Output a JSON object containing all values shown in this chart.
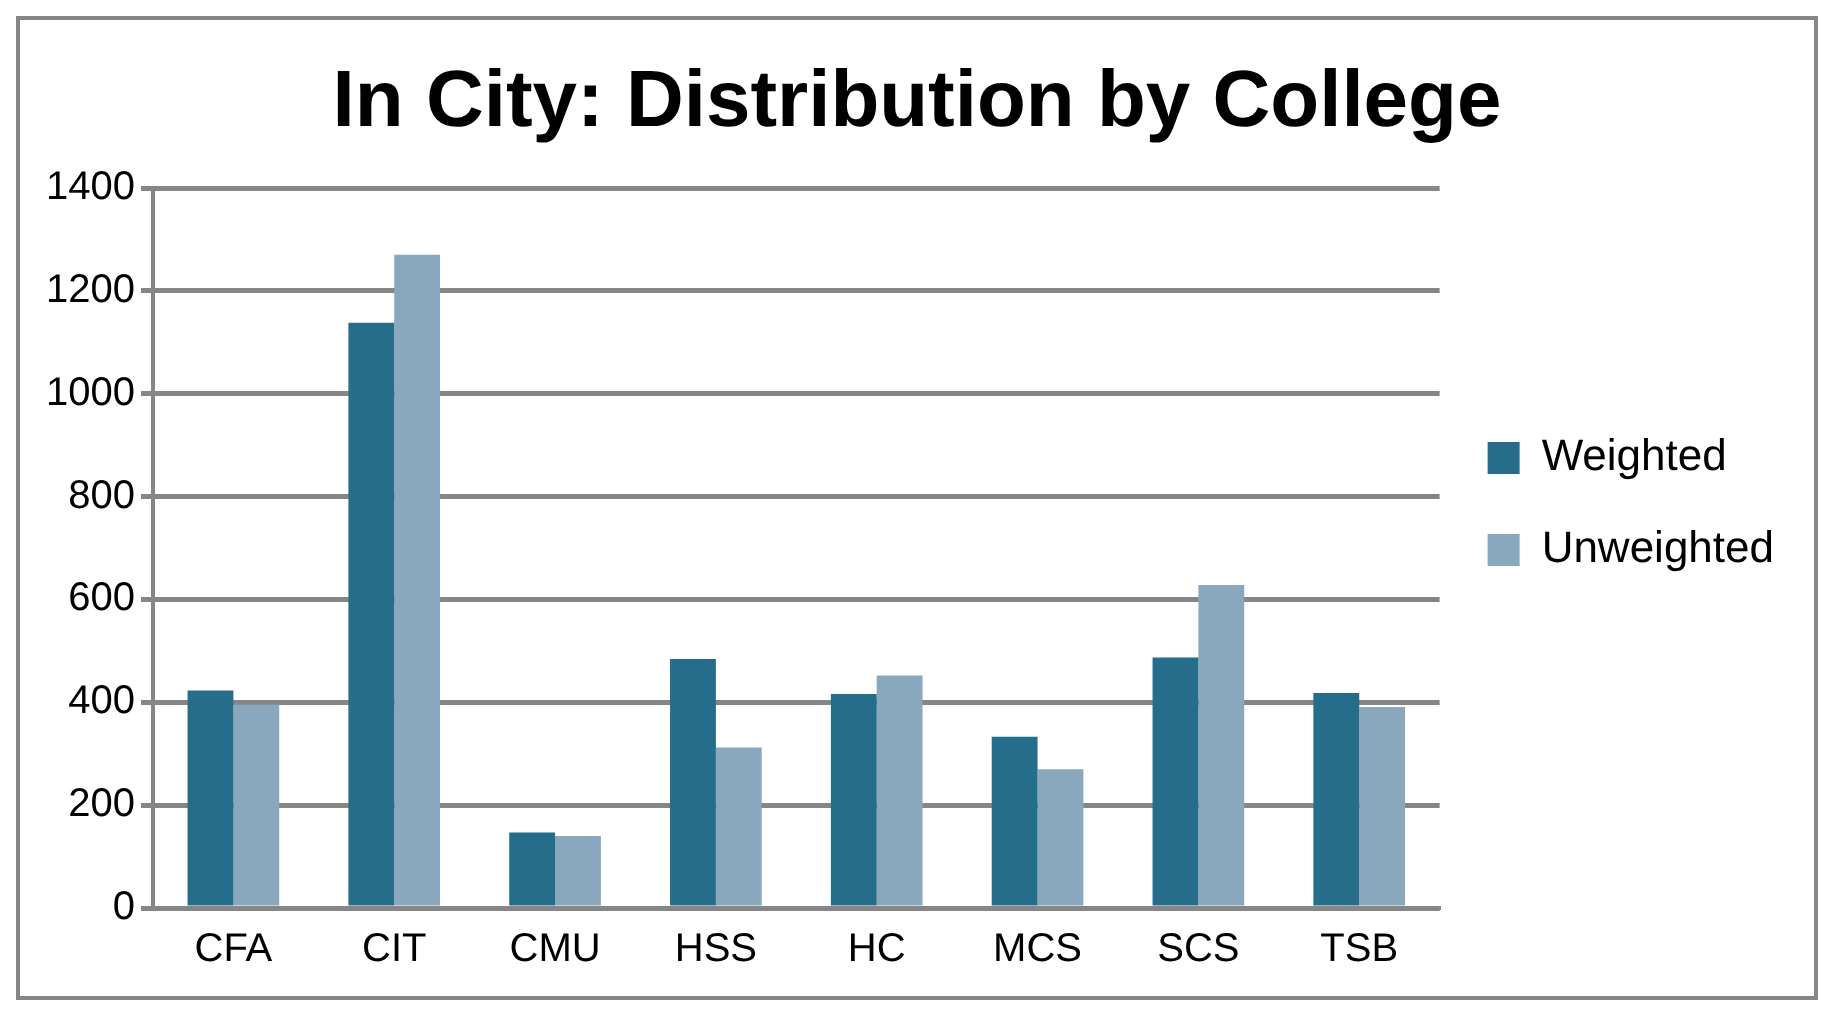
{
  "chart_data": {
    "type": "bar",
    "title": "In City: Distribution by College",
    "categories": [
      "CFA",
      "CIT",
      "CMU",
      "HSS",
      "HC",
      "MCS",
      "SCS",
      "TSB"
    ],
    "series": [
      {
        "name": "Weighted",
        "color": "#256d8b",
        "values": [
          423,
          1138,
          147,
          484,
          416,
          333,
          487,
          418
        ]
      },
      {
        "name": "Unweighted",
        "color": "#89a8bd",
        "values": [
          395,
          1270,
          140,
          312,
          452,
          270,
          628,
          391
        ]
      }
    ],
    "ylim": [
      0,
      1400
    ],
    "yticks": [
      0,
      200,
      400,
      600,
      800,
      1000,
      1200,
      1400
    ],
    "grid": "y",
    "legend": "right"
  }
}
